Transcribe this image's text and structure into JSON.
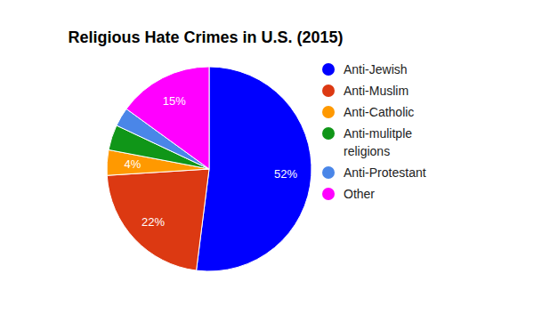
{
  "chart_data": {
    "type": "pie",
    "title": "Religious Hate Crimes in U.S. (2015)",
    "categories": [
      "Anti-Jewish",
      "Anti-Muslim",
      "Anti-Catholic",
      "Anti-mulitple religions",
      "Anti-Protestant",
      "Other"
    ],
    "values": [
      52,
      22,
      4,
      4,
      3,
      15
    ],
    "value_labels": [
      "52%",
      "22%",
      "4%",
      null,
      null,
      "15%"
    ],
    "colors": [
      "#0000ff",
      "#dc3912",
      "#ff9900",
      "#109618",
      "#4a86e8",
      "#ff00ff"
    ],
    "data_labels": true,
    "legend": "right"
  }
}
